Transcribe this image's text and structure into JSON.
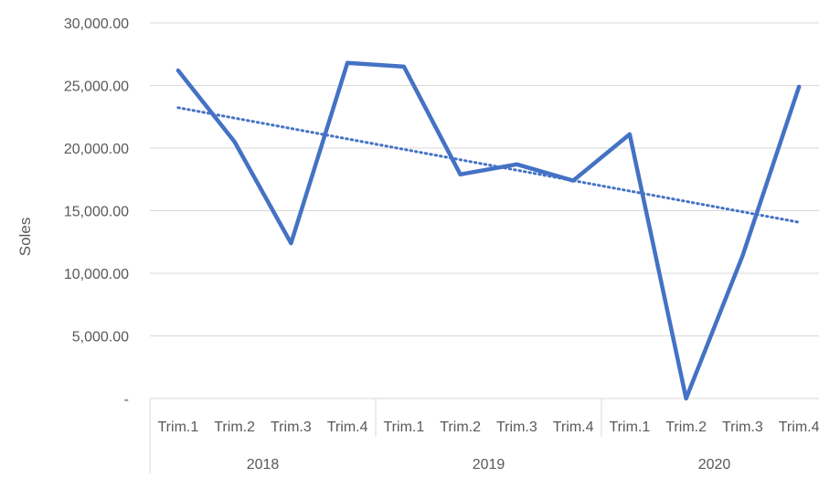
{
  "chart_data": {
    "type": "line",
    "title": "",
    "xlabel": "",
    "ylabel": "Soles",
    "ylim": [
      0,
      30000
    ],
    "y_ticks": [
      {
        "value": 0,
        "label": "-"
      },
      {
        "value": 5000,
        "label": "5,000.00"
      },
      {
        "value": 10000,
        "label": "10,000.00"
      },
      {
        "value": 15000,
        "label": "15,000.00"
      },
      {
        "value": 20000,
        "label": "20,000.00"
      },
      {
        "value": 25000,
        "label": "25,000.00"
      },
      {
        "value": 30000,
        "label": "30,000.00"
      }
    ],
    "grid": true,
    "categories": [
      "Trim.1",
      "Trim.2",
      "Trim.3",
      "Trim.4",
      "Trim.1",
      "Trim.2",
      "Trim.3",
      "Trim.4",
      "Trim.1",
      "Trim.2",
      "Trim.3",
      "Trim.4"
    ],
    "groups": [
      {
        "label": "2018",
        "count": 4
      },
      {
        "label": "2019",
        "count": 4
      },
      {
        "label": "2020",
        "count": 4
      }
    ],
    "series": [
      {
        "values": [
          26200,
          20500,
          12400,
          26800,
          26500,
          17900,
          18700,
          17400,
          21100,
          0,
          11400,
          24900
        ],
        "color": "#4472C4"
      }
    ],
    "trendline": {
      "type": "linear",
      "style": "dotted",
      "color": "#4472C4"
    }
  }
}
